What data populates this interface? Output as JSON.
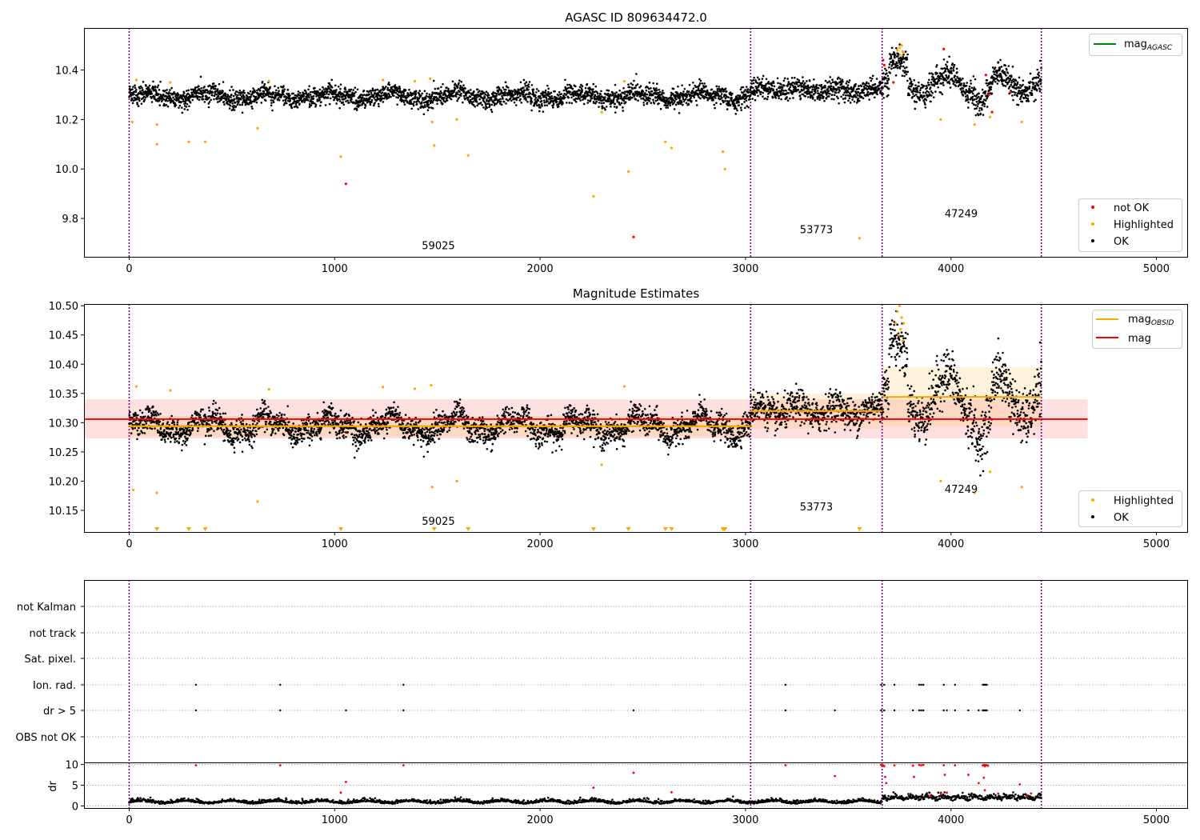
{
  "colors": {
    "ok": "#000000",
    "highlighted": "#ffa500",
    "not_ok": "#ff0000",
    "mag_agasc": "#008000",
    "mag_obsid": "#ffa500",
    "mag": "#ff0000",
    "obs_boundary": "#800080"
  },
  "chart_data": [
    {
      "type": "scatter",
      "title": "AGASC ID 809634472.0",
      "xlim": [
        -220,
        5150
      ],
      "ylim": [
        9.645,
        10.57
      ],
      "xticks": [
        0,
        1000,
        2000,
        3000,
        4000,
        5000
      ],
      "yticks": [
        9.8,
        10.0,
        10.2,
        10.4
      ],
      "obs_boundaries": [
        0,
        3025,
        3665,
        4440
      ],
      "legend_upper": [
        "mag$_{AGASC}$"
      ],
      "legend_lower": [
        "not OK",
        "Highlighted",
        "OK"
      ],
      "obsid_labels": [
        {
          "text": "59025",
          "x": 1505,
          "y": 9.675
        },
        {
          "text": "53773",
          "x": 3345,
          "y": 9.74
        },
        {
          "text": "47249",
          "x": 4050,
          "y": 9.805
        }
      ],
      "highlighted_points": [
        [
          15,
          10.19
        ],
        [
          35,
          10.36
        ],
        [
          135,
          10.18
        ],
        [
          135,
          10.1
        ],
        [
          200,
          10.35
        ],
        [
          290,
          10.11
        ],
        [
          370,
          10.11
        ],
        [
          625,
          10.165
        ],
        [
          680,
          10.355
        ],
        [
          1030,
          10.05
        ],
        [
          1235,
          10.36
        ],
        [
          1390,
          10.355
        ],
        [
          1465,
          10.365
        ],
        [
          1475,
          10.19
        ],
        [
          1485,
          10.095
        ],
        [
          1595,
          10.2
        ],
        [
          1650,
          10.055
        ],
        [
          2260,
          9.89
        ],
        [
          2300,
          10.23
        ],
        [
          2410,
          10.355
        ],
        [
          2430,
          9.99
        ],
        [
          2610,
          10.11
        ],
        [
          2640,
          10.085
        ],
        [
          2890,
          10.07
        ],
        [
          2900,
          10.0
        ],
        [
          3555,
          9.72
        ],
        [
          3950,
          10.2
        ],
        [
          4115,
          10.18
        ],
        [
          4190,
          10.21
        ],
        [
          4345,
          10.19
        ],
        [
          3740,
          10.48
        ],
        [
          3750,
          10.49
        ],
        [
          3760,
          10.5
        ],
        [
          3770,
          10.47
        ],
        [
          3755,
          10.46
        ],
        [
          3765,
          10.475
        ]
      ],
      "not_ok_points": [
        [
          1055,
          9.94
        ],
        [
          2455,
          9.725
        ],
        [
          3670,
          10.44
        ],
        [
          3675,
          10.42
        ],
        [
          3720,
          10.35
        ],
        [
          3965,
          10.485
        ],
        [
          4170,
          10.38
        ],
        [
          4185,
          10.3
        ],
        [
          4200,
          10.23
        ],
        [
          4290,
          10.31
        ]
      ]
    },
    {
      "type": "scatter",
      "title": "Magnitude Estimates",
      "xlim": [
        -220,
        5150
      ],
      "ylim": [
        10.113,
        10.503
      ],
      "xticks": [
        0,
        1000,
        2000,
        3000,
        4000,
        5000
      ],
      "yticks": [
        10.15,
        10.2,
        10.25,
        10.3,
        10.35,
        10.4,
        10.45,
        10.5
      ],
      "obs_boundaries": [
        0,
        3025,
        3665,
        4440
      ],
      "legend_upper": [
        "mag$_{OBSID}$",
        "mag"
      ],
      "legend_lower": [
        "Highlighted",
        "OK"
      ],
      "mag": 10.306,
      "mag_band": [
        10.273,
        10.34
      ],
      "mag_xrange": [
        -220,
        4665
      ],
      "obsid_segments": [
        {
          "x0": 0,
          "x1": 3025,
          "mag": 10.294,
          "lo": 10.276,
          "hi": 10.312
        },
        {
          "x0": 3025,
          "x1": 3665,
          "mag": 10.32,
          "lo": 10.29,
          "hi": 10.35
        },
        {
          "x0": 3665,
          "x1": 4440,
          "mag": 10.344,
          "lo": 10.293,
          "hi": 10.395
        }
      ],
      "obsid_labels": [
        {
          "text": "59025",
          "x": 1505,
          "y": 10.125
        },
        {
          "text": "53773",
          "x": 3345,
          "y": 10.15
        },
        {
          "text": "47249",
          "x": 4050,
          "y": 10.18
        }
      ],
      "highlighted_points": [
        [
          20,
          10.185
        ],
        [
          35,
          10.362
        ],
        [
          135,
          10.18
        ],
        [
          200,
          10.355
        ],
        [
          625,
          10.165
        ],
        [
          680,
          10.357
        ],
        [
          1235,
          10.361
        ],
        [
          1390,
          10.358
        ],
        [
          1470,
          10.364
        ],
        [
          1475,
          10.19
        ],
        [
          1595,
          10.2
        ],
        [
          2300,
          10.228
        ],
        [
          2410,
          10.362
        ],
        [
          3950,
          10.2
        ],
        [
          4115,
          10.18
        ],
        [
          4190,
          10.216
        ],
        [
          4345,
          10.19
        ],
        [
          3730,
          10.47
        ],
        [
          3740,
          10.49
        ],
        [
          3750,
          10.5
        ],
        [
          3760,
          10.48
        ],
        [
          3755,
          10.46
        ],
        [
          3770,
          10.47
        ],
        [
          3745,
          10.45
        ],
        [
          3765,
          10.44
        ]
      ],
      "clipped_markers": [
        135,
        290,
        370,
        1030,
        1485,
        1650,
        2260,
        2430,
        2610,
        2640,
        2890,
        2895,
        2900,
        3555
      ]
    },
    {
      "type": "scatter",
      "title": "",
      "xlim": [
        -220,
        5150
      ],
      "categories": [
        "not Kalman",
        "not track",
        "Sat. pixel.",
        "Ion. rad.",
        "dr > 5",
        "OBS not OK"
      ],
      "flag_points": {
        "Ion. rad.": [
          325,
          735,
          1335,
          3195,
          3660,
          3675,
          3725,
          3845,
          3855,
          3865,
          3965,
          4020,
          4155,
          4160,
          4165,
          4170,
          4175
        ],
        "dr > 5": [
          325,
          735,
          1055,
          1335,
          2455,
          3195,
          3435,
          3660,
          3675,
          3725,
          3815,
          3845,
          3855,
          3865,
          3965,
          3980,
          4020,
          4085,
          4135,
          4155,
          4160,
          4165,
          4170,
          4175,
          4335
        ]
      },
      "xticks": [
        0,
        1000,
        2000,
        3000,
        4000,
        5000
      ],
      "obs_boundaries": [
        0,
        3025,
        3665,
        4440
      ]
    },
    {
      "type": "scatter",
      "title": "",
      "ylabel": "dr",
      "xlim": [
        -220,
        5150
      ],
      "ylim": [
        -0.5,
        10.5
      ],
      "xticks": [
        0,
        1000,
        2000,
        3000,
        4000,
        5000
      ],
      "yticks": [
        0,
        5,
        10
      ],
      "obs_boundaries": [
        0,
        3025,
        3665,
        4440
      ],
      "red_points": [
        [
          325,
          9.8
        ],
        [
          735,
          9.8
        ],
        [
          1030,
          3.2
        ],
        [
          1055,
          5.8
        ],
        [
          1335,
          9.8
        ],
        [
          2260,
          4.4
        ],
        [
          2455,
          8.0
        ],
        [
          2640,
          3.3
        ],
        [
          3195,
          9.8
        ],
        [
          3435,
          7.2
        ],
        [
          3660,
          9.9
        ],
        [
          3670,
          9.8
        ],
        [
          3675,
          9.6
        ],
        [
          3680,
          7.0
        ],
        [
          3685,
          5.5
        ],
        [
          3725,
          9.8
        ],
        [
          3815,
          9.7
        ],
        [
          3820,
          7.0
        ],
        [
          3845,
          9.9
        ],
        [
          3855,
          9.8
        ],
        [
          3865,
          9.9
        ],
        [
          3900,
          2.5
        ],
        [
          3950,
          3.0
        ],
        [
          3965,
          9.8
        ],
        [
          3970,
          7.5
        ],
        [
          3980,
          3.2
        ],
        [
          4020,
          9.8
        ],
        [
          4085,
          7.5
        ],
        [
          4135,
          5.5
        ],
        [
          4155,
          9.8
        ],
        [
          4160,
          9.9
        ],
        [
          4165,
          9.6
        ],
        [
          4170,
          9.9
        ],
        [
          4175,
          9.8
        ],
        [
          4180,
          9.7
        ],
        [
          4160,
          6.8
        ],
        [
          4165,
          3.8
        ],
        [
          4230,
          3.0
        ],
        [
          4335,
          5.2
        ],
        [
          4370,
          2.5
        ],
        [
          4390,
          3.0
        ]
      ]
    }
  ]
}
